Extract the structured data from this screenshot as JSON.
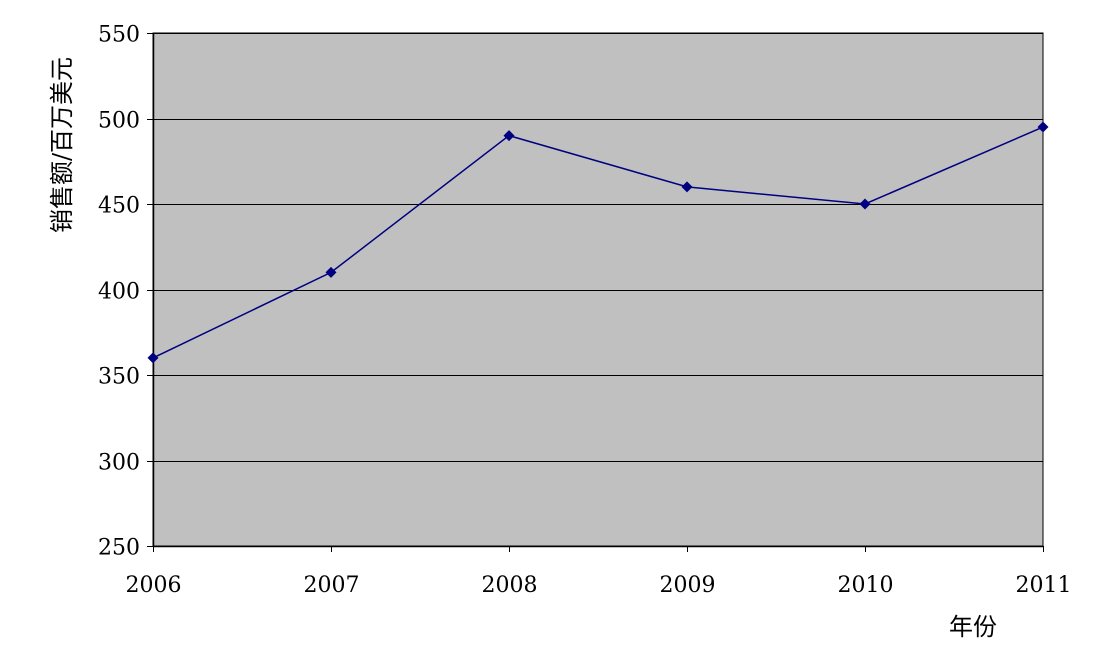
{
  "chart_data": {
    "type": "line",
    "title": "",
    "xlabel": "年份",
    "ylabel": "销售额/百万美元",
    "ylim": [
      250,
      550
    ],
    "y_ticks": [
      250,
      300,
      350,
      400,
      450,
      500,
      550
    ],
    "grid": true,
    "legend": "none",
    "categories": [
      "2006",
      "2007",
      "2008",
      "2009",
      "2010",
      "2011"
    ],
    "series": [
      {
        "values": [
          360,
          410,
          490,
          460,
          450,
          495
        ]
      }
    ],
    "colors": {
      "plot_background": "#c0c0c0",
      "line": "#000080",
      "marker": "#000080",
      "gridline": "#000000",
      "axis": "#000000"
    }
  }
}
